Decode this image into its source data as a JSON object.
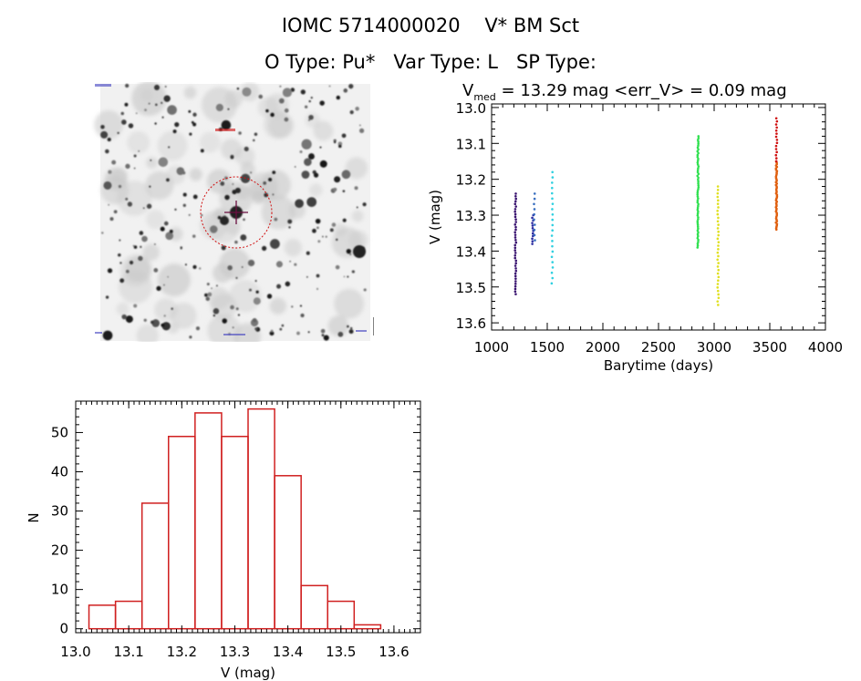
{
  "header": {
    "line1": "IOMC 5714000020    V* BM Sct",
    "line2": "O Type: Pu*   Var Type: L   SP Type:"
  },
  "finder": {
    "description_color_circle": "#d01010",
    "corner_label_tl": "",
    "corner_label_bl": "",
    "corner_label_bc": "",
    "corner_label_br": ""
  },
  "chart_data": [
    {
      "type": "scatter",
      "title_prefix": "V",
      "title_sub": "med",
      "title_rest": " = 13.29 mag <err_V> = 0.09 mag",
      "xlabel": "Barytime (days)",
      "ylabel": "V (mag)",
      "xlim": [
        1000,
        4000
      ],
      "ylim": [
        13.62,
        12.99
      ],
      "y_inverted": true,
      "xticks": [
        1000,
        1500,
        2000,
        2500,
        3000,
        3500,
        4000
      ],
      "yticks": [
        13.0,
        13.1,
        13.2,
        13.3,
        13.4,
        13.5,
        13.6
      ],
      "ytick_labels": [
        "13.0",
        "13.1",
        "13.2",
        "13.3",
        "13.4",
        "13.5",
        "13.6"
      ],
      "grid": false,
      "series": [
        {
          "color": "#3a1470",
          "x": 1215,
          "ymin": 13.24,
          "ymax": 13.52,
          "n": 40
        },
        {
          "color": "#2a2aa0",
          "x": 1370,
          "ymin": 13.3,
          "ymax": 13.38,
          "n": 12
        },
        {
          "color": "#3a70c0",
          "x": 1385,
          "ymin": 13.24,
          "ymax": 13.37,
          "n": 10
        },
        {
          "color": "#30d0e0",
          "x": 1545,
          "ymin": 13.18,
          "ymax": 13.49,
          "n": 22
        },
        {
          "color": "#30e050",
          "x": 2855,
          "ymin": 13.08,
          "ymax": 13.39,
          "n": 60
        },
        {
          "color": "#e0e020",
          "x": 3035,
          "ymin": 13.22,
          "ymax": 13.55,
          "n": 35
        },
        {
          "color": "#e06010",
          "x": 3560,
          "ymin": 13.15,
          "ymax": 13.34,
          "n": 50
        },
        {
          "color": "#d01010",
          "x": 3560,
          "ymin": 13.03,
          "ymax": 13.15,
          "n": 15
        }
      ]
    },
    {
      "type": "bar",
      "histogram": true,
      "xlabel": "V (mag)",
      "ylabel": "N",
      "bin_edges": [
        13.025,
        13.075,
        13.125,
        13.175,
        13.225,
        13.275,
        13.325,
        13.375,
        13.425,
        13.475,
        13.525,
        13.575
      ],
      "values": [
        6,
        7,
        32,
        49,
        55,
        49,
        56,
        39,
        11,
        7,
        1
      ],
      "xlim": [
        13.0,
        13.65
      ],
      "ylim": [
        -1,
        58
      ],
      "xticks": [
        13.0,
        13.1,
        13.2,
        13.3,
        13.4,
        13.5,
        13.6
      ],
      "xtick_labels": [
        "13.0",
        "13.1",
        "13.2",
        "13.3",
        "13.4",
        "13.5",
        "13.6"
      ],
      "yticks": [
        0,
        10,
        20,
        30,
        40,
        50
      ],
      "ytick_labels": [
        "0",
        "10",
        "20",
        "30",
        "40",
        "50"
      ],
      "color": "#d02020"
    }
  ]
}
